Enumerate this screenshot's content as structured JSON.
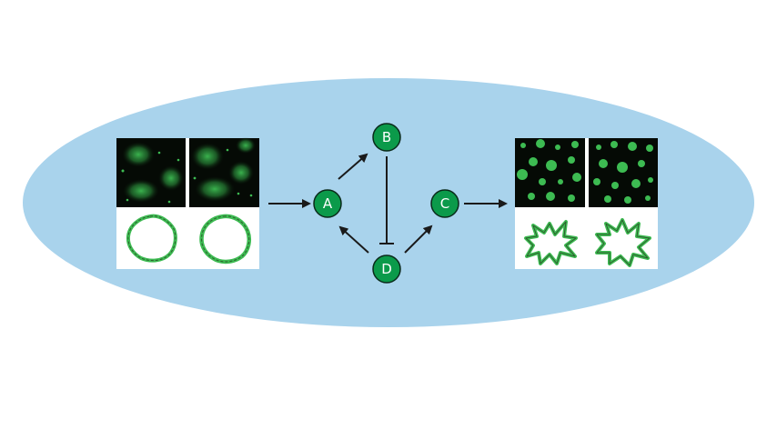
{
  "colors": {
    "cell_background": "#a9d3ec",
    "node_fill": "#0b9a4a",
    "node_stroke": "#0a2a1a",
    "arrow": "#1a1a1a",
    "panel_dark": "#050a05",
    "fluorescence_green": "#3dbb52",
    "membrane_outline": "#2e5e2e"
  },
  "nodes": {
    "a": {
      "label": "A"
    },
    "b": {
      "label": "B"
    },
    "c": {
      "label": "C"
    },
    "d": {
      "label": "D"
    }
  },
  "edges": [
    {
      "from": "input",
      "to": "A",
      "type": "activation"
    },
    {
      "from": "A",
      "to": "B",
      "type": "activation"
    },
    {
      "from": "B",
      "to": "D",
      "type": "inhibition"
    },
    {
      "from": "D",
      "to": "A",
      "type": "activation"
    },
    {
      "from": "D",
      "to": "C",
      "type": "activation"
    },
    {
      "from": "C",
      "to": "output",
      "type": "activation"
    }
  ],
  "icons": {
    "left_panels": "diffuse-fluorescence-and-round-cell-micrographs",
    "right_panels": "punctate-fluorescence-and-spiky-cell-micrographs"
  }
}
